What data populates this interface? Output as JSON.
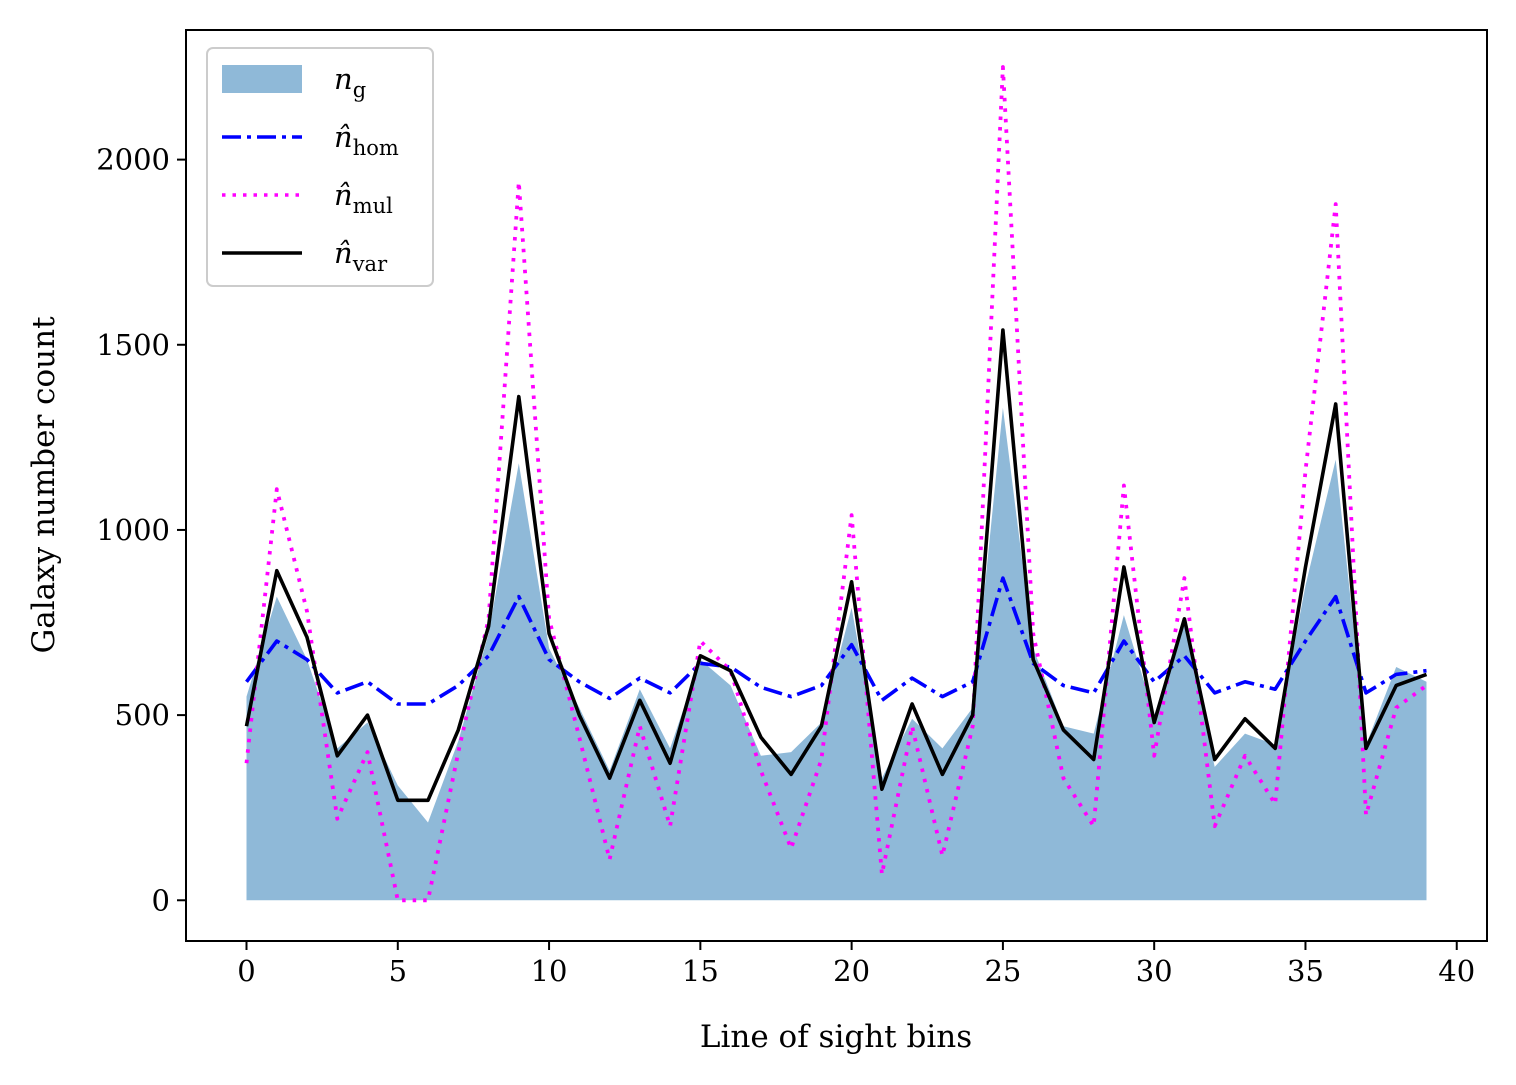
{
  "chart_data": {
    "type": "line",
    "title": "",
    "xlabel": "Line of sight bins",
    "ylabel": "Galaxy number count",
    "xlim": [
      -2,
      41
    ],
    "ylim": [
      -110,
      2350
    ],
    "xticks": [
      0,
      5,
      10,
      15,
      20,
      25,
      30,
      35,
      40
    ],
    "yticks": [
      0,
      500,
      1000,
      1500,
      2000
    ],
    "grid": false,
    "legend_position": "top-left",
    "x": [
      0,
      1,
      2,
      3,
      4,
      5,
      6,
      7,
      8,
      9,
      10,
      11,
      12,
      13,
      14,
      15,
      16,
      17,
      18,
      19,
      20,
      21,
      22,
      23,
      24,
      25,
      26,
      27,
      28,
      29,
      30,
      31,
      32,
      33,
      34,
      35,
      36,
      37,
      38,
      39
    ],
    "series": [
      {
        "name": "n_g",
        "legend_base": "n",
        "legend_sub": "g",
        "style": "area",
        "color": "#8fb9d8",
        "values": [
          550,
          820,
          650,
          410,
          480,
          310,
          210,
          430,
          720,
          1180,
          680,
          520,
          350,
          570,
          410,
          650,
          580,
          390,
          400,
          480,
          790,
          330,
          490,
          410,
          520,
          1330,
          680,
          470,
          450,
          770,
          500,
          750,
          360,
          450,
          420,
          850,
          1190,
          420,
          630,
          590
        ]
      },
      {
        "name": "n_hom",
        "legend_base": "n̂",
        "legend_sub": "hom",
        "style": "dashdot",
        "color": "#0000ff",
        "values": [
          590,
          700,
          650,
          560,
          590,
          530,
          530,
          580,
          660,
          820,
          650,
          590,
          545,
          600,
          560,
          640,
          630,
          575,
          550,
          580,
          690,
          540,
          600,
          550,
          590,
          870,
          640,
          580,
          560,
          700,
          590,
          660,
          560,
          590,
          570,
          700,
          820,
          560,
          610,
          620
        ]
      },
      {
        "name": "n_mul",
        "legend_base": "n̂",
        "legend_sub": "mul",
        "style": "dotted",
        "color": "#ff00ff",
        "values": [
          370,
          1110,
          780,
          220,
          400,
          0,
          0,
          400,
          760,
          1940,
          760,
          440,
          110,
          470,
          200,
          700,
          620,
          350,
          140,
          380,
          1040,
          70,
          470,
          120,
          470,
          2250,
          720,
          330,
          200,
          1120,
          390,
          870,
          200,
          390,
          260,
          1160,
          1880,
          230,
          520,
          580
        ]
      },
      {
        "name": "n_var",
        "legend_base": "n̂",
        "legend_sub": "var",
        "style": "solid",
        "color": "#000000",
        "values": [
          470,
          890,
          710,
          390,
          500,
          270,
          270,
          460,
          740,
          1360,
          720,
          500,
          330,
          540,
          370,
          660,
          620,
          440,
          340,
          470,
          860,
          300,
          530,
          340,
          500,
          1540,
          650,
          460,
          380,
          900,
          480,
          760,
          380,
          490,
          410,
          900,
          1340,
          410,
          580,
          610
        ]
      }
    ]
  }
}
